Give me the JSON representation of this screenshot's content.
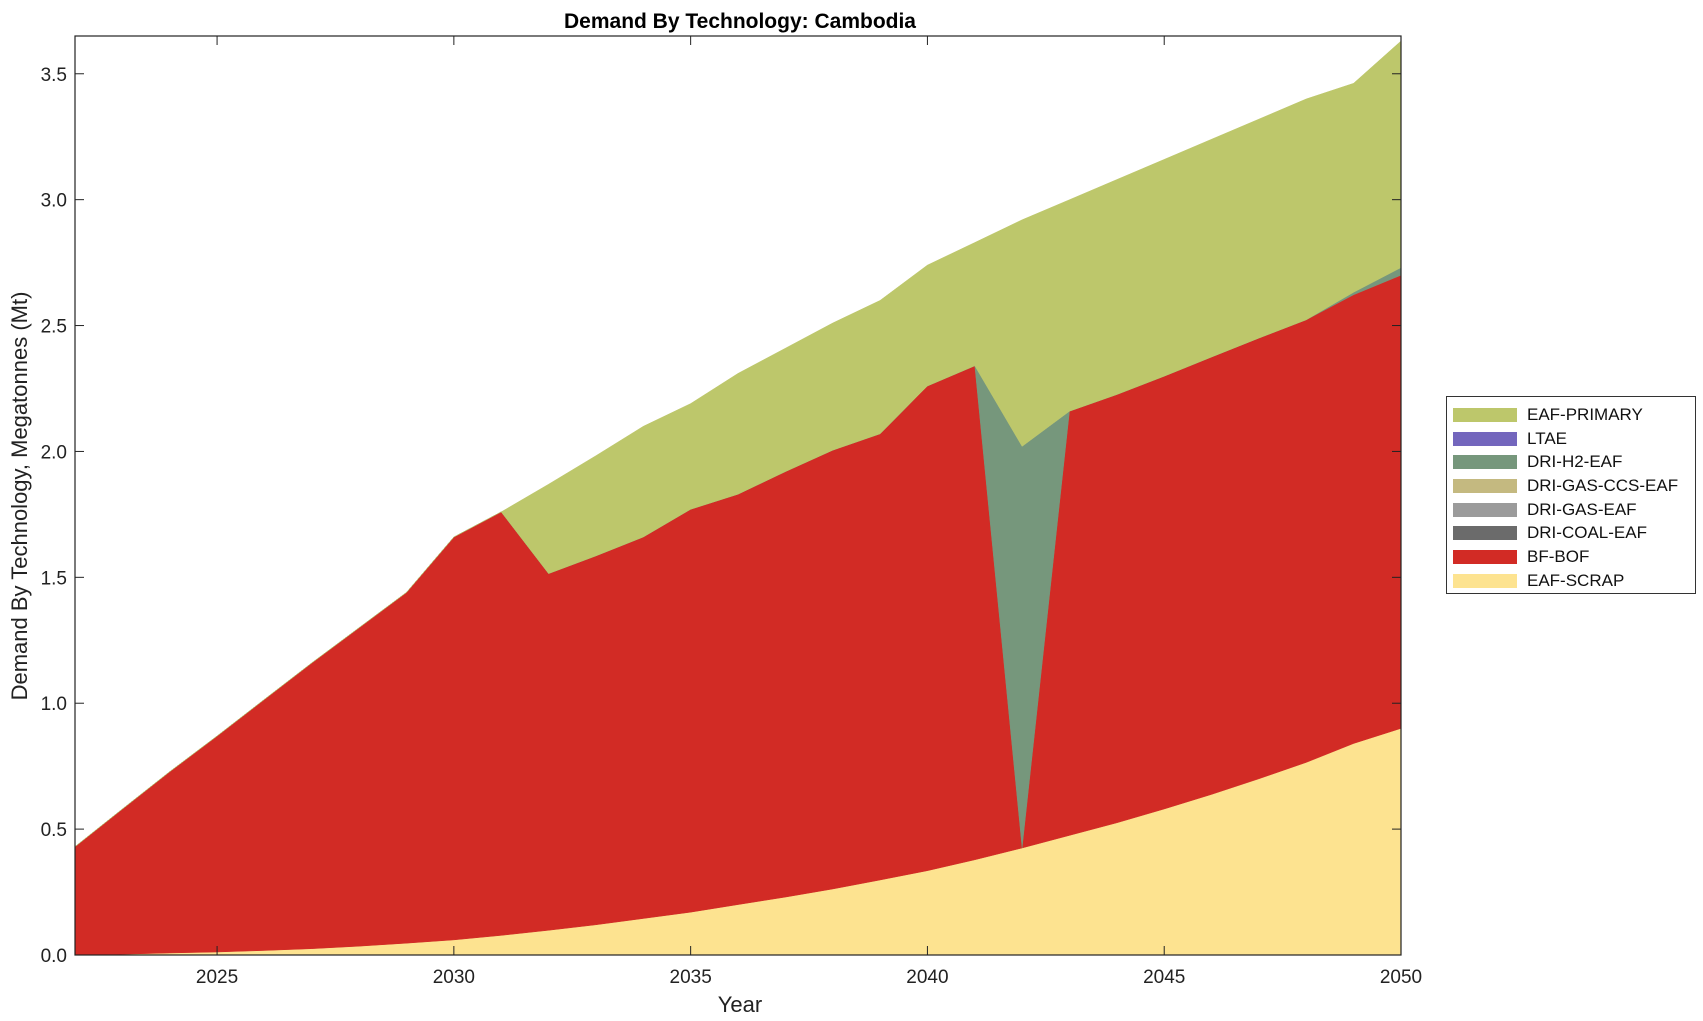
{
  "chart_data": {
    "type": "area",
    "stacked": true,
    "title": "Demand By Technology: Cambodia",
    "xlabel": "Year",
    "ylabel": "Demand By Technology, Megatonnes (Mt)",
    "xlim": [
      2022,
      2050
    ],
    "ylim": [
      0,
      3.65
    ],
    "xticks": [
      2025,
      2030,
      2035,
      2040,
      2045,
      2050
    ],
    "yticks": [
      0.0,
      0.5,
      1.0,
      1.5,
      2.0,
      2.5,
      3.0,
      3.5
    ],
    "ytick_labels": [
      "0.0",
      "0.5",
      "1.0",
      "1.5",
      "2.0",
      "2.5",
      "3.0",
      "3.5"
    ],
    "grid": false,
    "legend_position": "right",
    "x": [
      2022,
      2023,
      2024,
      2025,
      2026,
      2027,
      2028,
      2029,
      2030,
      2031,
      2032,
      2033,
      2034,
      2035,
      2036,
      2037,
      2038,
      2039,
      2040,
      2041,
      2042,
      2043,
      2044,
      2045,
      2046,
      2047,
      2048,
      2049,
      2050
    ],
    "series": [
      {
        "name": "EAF-SCRAP",
        "color": "#fde390",
        "values": [
          0.0,
          0.003,
          0.008,
          0.012,
          0.018,
          0.025,
          0.035,
          0.047,
          0.06,
          0.078,
          0.098,
          0.12,
          0.145,
          0.17,
          0.2,
          0.23,
          0.262,
          0.298,
          0.335,
          0.378,
          0.425,
          0.475,
          0.525,
          0.58,
          0.638,
          0.7,
          0.765,
          0.84,
          0.9
        ]
      },
      {
        "name": "BF-BOF",
        "color": "#d22b25",
        "values": [
          0.43,
          0.577,
          0.72,
          0.858,
          0.997,
          1.135,
          1.265,
          1.393,
          1.6,
          1.682,
          1.417,
          1.465,
          1.515,
          1.6,
          1.63,
          1.69,
          1.743,
          1.772,
          1.925,
          1.962,
          0.0,
          1.685,
          1.701,
          1.719,
          1.737,
          1.75,
          1.758,
          1.782,
          1.8
        ]
      },
      {
        "name": "DRI-COAL-EAF",
        "color": "#6b6b6b",
        "values": [
          0,
          0,
          0,
          0,
          0,
          0,
          0,
          0,
          0,
          0,
          0,
          0,
          0,
          0,
          0,
          0,
          0,
          0,
          0,
          0,
          0,
          0,
          0,
          0,
          0,
          0,
          0,
          0,
          0
        ]
      },
      {
        "name": "DRI-GAS-EAF",
        "color": "#9b9b9b",
        "values": [
          0,
          0,
          0,
          0,
          0,
          0,
          0,
          0,
          0,
          0,
          0,
          0,
          0,
          0,
          0,
          0,
          0,
          0,
          0,
          0,
          0,
          0,
          0,
          0,
          0,
          0,
          0,
          0,
          0
        ]
      },
      {
        "name": "DRI-GAS-CCS-EAF",
        "color": "#c4b980",
        "values": [
          0,
          0,
          0,
          0,
          0,
          0,
          0,
          0,
          0,
          0,
          0,
          0,
          0,
          0,
          0,
          0,
          0,
          0,
          0,
          0,
          0,
          0,
          0,
          0,
          0,
          0,
          0,
          0,
          0
        ]
      },
      {
        "name": "DRI-H2-EAF",
        "color": "#76977c",
        "values": [
          0,
          0,
          0,
          0,
          0,
          0,
          0,
          0,
          0,
          0,
          0,
          0,
          0,
          0,
          0,
          0,
          0,
          0,
          0,
          0,
          1.595,
          0,
          0,
          0,
          0,
          0,
          0,
          0.01,
          0.03
        ]
      },
      {
        "name": "LTAE",
        "color": "#7366bd",
        "values": [
          0,
          0,
          0,
          0,
          0,
          0,
          0,
          0,
          0,
          0,
          0,
          0,
          0,
          0,
          0,
          0,
          0,
          0,
          0,
          0,
          0,
          0,
          0,
          0,
          0,
          0,
          0,
          0,
          0
        ]
      },
      {
        "name": "EAF-PRIMARY",
        "color": "#bdc76b",
        "values": [
          0,
          0,
          0,
          0,
          0,
          0,
          0,
          0,
          0,
          0,
          0.355,
          0.398,
          0.44,
          0.42,
          0.48,
          0.49,
          0.505,
          0.53,
          0.48,
          0.49,
          0.9,
          0.84,
          0.854,
          0.861,
          0.865,
          0.87,
          0.877,
          0.83,
          0.9
        ]
      }
    ]
  }
}
